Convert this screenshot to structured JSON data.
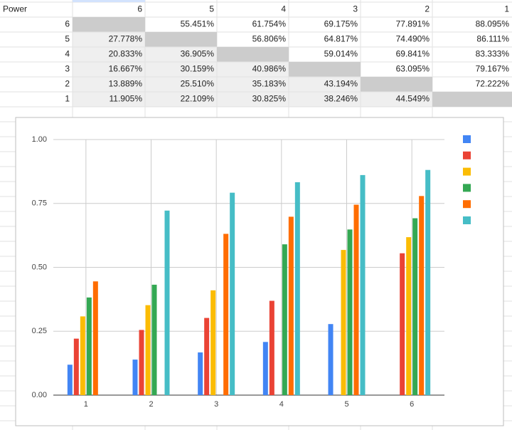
{
  "table": {
    "header": [
      "Power",
      6,
      5,
      4,
      3,
      2,
      1
    ],
    "rows": [
      {
        "label": 6,
        "cells": [
          null,
          "55.451%",
          "61.754%",
          "69.175%",
          "77.891%",
          "88.095%"
        ]
      },
      {
        "label": 5,
        "cells": [
          "27.778%",
          null,
          "56.806%",
          "64.817%",
          "74.490%",
          "86.111%"
        ]
      },
      {
        "label": 4,
        "cells": [
          "20.833%",
          "36.905%",
          null,
          "59.014%",
          "69.841%",
          "83.333%"
        ]
      },
      {
        "label": 3,
        "cells": [
          "16.667%",
          "30.159%",
          "40.986%",
          null,
          "63.095%",
          "79.167%"
        ]
      },
      {
        "label": 2,
        "cells": [
          "13.889%",
          "25.510%",
          "35.183%",
          "43.194%",
          null,
          "72.222%"
        ]
      },
      {
        "label": 1,
        "cells": [
          "11.905%",
          "22.109%",
          "30.825%",
          "38.246%",
          "44.549%",
          null
        ]
      }
    ]
  },
  "chart_data": {
    "type": "bar",
    "categories": [
      "1",
      "2",
      "3",
      "4",
      "5",
      "6"
    ],
    "series": [
      {
        "color": "#4285f4",
        "values": [
          0.119,
          0.139,
          0.167,
          0.208,
          0.278,
          null
        ]
      },
      {
        "color": "#ea4335",
        "values": [
          0.221,
          0.255,
          0.302,
          0.369,
          null,
          0.555
        ]
      },
      {
        "color": "#fbbc04",
        "values": [
          0.308,
          0.352,
          0.41,
          null,
          0.568,
          0.618
        ]
      },
      {
        "color": "#34a853",
        "values": [
          0.382,
          0.432,
          null,
          0.59,
          0.648,
          0.692
        ]
      },
      {
        "color": "#ff6d01",
        "values": [
          0.445,
          null,
          0.631,
          0.698,
          0.745,
          0.779
        ]
      },
      {
        "color": "#46bdc6",
        "values": [
          null,
          0.722,
          0.792,
          0.833,
          0.861,
          0.881
        ]
      }
    ],
    "ylim": [
      0,
      1
    ],
    "yticks": [
      {
        "value": 0,
        "label": "0.00"
      },
      {
        "value": 0.25,
        "label": "0.25"
      },
      {
        "value": 0.5,
        "label": "0.50"
      },
      {
        "value": 0.75,
        "label": "0.75"
      },
      {
        "value": 1,
        "label": "1.00"
      }
    ],
    "grid": true,
    "legend": "right"
  }
}
